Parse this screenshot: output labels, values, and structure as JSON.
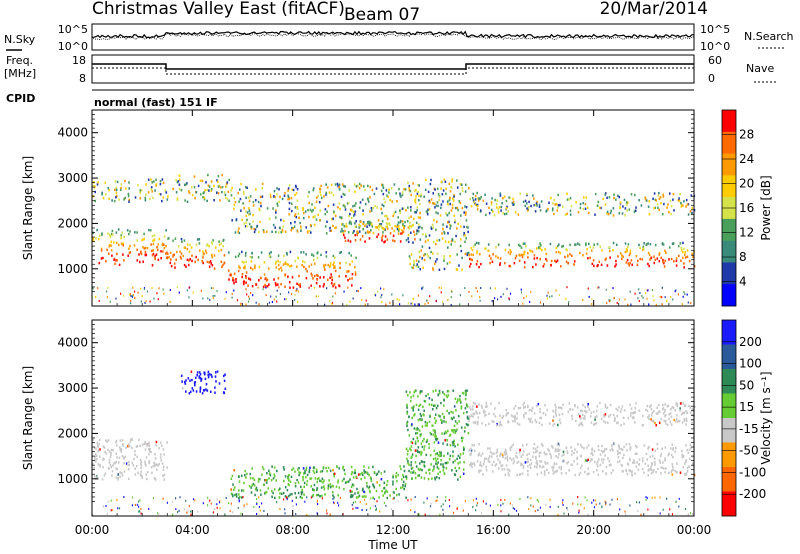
{
  "header": {
    "station": "Christmas Valley East (fitACF)",
    "beam": "Beam 07",
    "date": "20/Mar/2014"
  },
  "noise_panel": {
    "left_label": "N.Sky",
    "left_ticks": [
      "10^5",
      "10^0"
    ],
    "right_ticks": [
      "10^5",
      "10^0"
    ],
    "right_label": "N.Search"
  },
  "freq_panel": {
    "left_label_1": "Freq.",
    "left_label_2": "[MHz]",
    "left_ticks": [
      "18",
      "8"
    ],
    "right_ticks": [
      "60",
      "0"
    ],
    "right_label": "Nave"
  },
  "cpid": {
    "label": "CPID",
    "mode_text": "normal (fast) 151 IF"
  },
  "power_panel": {
    "ylabel": "Slant Range [km]",
    "yticks": [
      "4000",
      "3000",
      "2000",
      "1000"
    ],
    "colorbar_label": "Power [dB]",
    "colorbar_ticks": [
      "28",
      "24",
      "20",
      "16",
      "12",
      "8",
      "4"
    ],
    "colorbar_colors": [
      "#ff0000",
      "#ff6a00",
      "#ff9900",
      "#ffcc00",
      "#d6e24a",
      "#4aa05a",
      "#3a8a7a",
      "#1f3aa8",
      "#0000ff"
    ]
  },
  "velocity_panel": {
    "ylabel": "Slant Range [km]",
    "yticks": [
      "4000",
      "3000",
      "2000",
      "1000"
    ],
    "colorbar_label": "Velocity [m s⁻¹]",
    "colorbar_ticks": [
      "200",
      "100",
      "50",
      "15",
      "-15",
      "-50",
      "-100",
      "-200"
    ],
    "colorbar_colors": [
      "#1a1aff",
      "#2a5a9a",
      "#2e8b57",
      "#66cc33",
      "#c8c8c8",
      "#ff9900",
      "#ff6600",
      "#ff0000"
    ]
  },
  "xaxis": {
    "ticks": [
      "00:00",
      "04:00",
      "08:00",
      "12:00",
      "16:00",
      "20:00",
      "00:00"
    ],
    "label": "Time UT"
  },
  "chart_data": {
    "type": "heatmap",
    "title": "Christmas Valley East (fitACF) Beam 07 20/Mar/2014",
    "xlabel": "Time UT",
    "ylabel": "Slant Range [km]",
    "xlim": [
      0,
      24
    ],
    "ylim": [
      180,
      4500
    ],
    "power_range_db": [
      0,
      30
    ],
    "velocity_range_ms": [
      -200,
      200
    ],
    "power_bands": [
      {
        "start_h": 0.0,
        "end_h": 3.0,
        "low_km": 1100,
        "high_km": 1900,
        "level": "strong"
      },
      {
        "start_h": 0.0,
        "end_h": 3.0,
        "low_km": 2500,
        "high_km": 3000,
        "level": "medium"
      },
      {
        "start_h": 3.0,
        "end_h": 5.4,
        "low_km": 1000,
        "high_km": 1700,
        "level": "strong"
      },
      {
        "start_h": 3.2,
        "end_h": 5.5,
        "low_km": 2500,
        "high_km": 3100,
        "level": "medium"
      },
      {
        "start_h": 5.4,
        "end_h": 10.5,
        "low_km": 600,
        "high_km": 1400,
        "level": "strong"
      },
      {
        "start_h": 5.5,
        "end_h": 12.5,
        "low_km": 1800,
        "high_km": 2900,
        "level": "medium"
      },
      {
        "start_h": 10.0,
        "end_h": 13.0,
        "low_km": 1600,
        "high_km": 2100,
        "level": "strong"
      },
      {
        "start_h": 12.5,
        "end_h": 15.0,
        "low_km": 1000,
        "high_km": 3000,
        "level": "medium"
      },
      {
        "start_h": 15.0,
        "end_h": 24.0,
        "low_km": 1050,
        "high_km": 1600,
        "level": "strong"
      },
      {
        "start_h": 15.0,
        "end_h": 24.0,
        "low_km": 2200,
        "high_km": 2700,
        "level": "medium"
      }
    ],
    "velocity_bands": [
      {
        "start_h": 0.0,
        "end_h": 3.0,
        "low_km": 1000,
        "high_km": 1900,
        "v": 0
      },
      {
        "start_h": 3.5,
        "end_h": 5.3,
        "low_km": 2900,
        "high_km": 3400,
        "v": 200
      },
      {
        "start_h": 5.5,
        "end_h": 12.5,
        "low_km": 600,
        "high_km": 1300,
        "v": 30
      },
      {
        "start_h": 12.5,
        "end_h": 15.0,
        "low_km": 1000,
        "high_km": 3000,
        "v": 30
      },
      {
        "start_h": 15.0,
        "end_h": 24.0,
        "low_km": 1100,
        "high_km": 1800,
        "v": 0
      },
      {
        "start_h": 15.0,
        "end_h": 24.0,
        "low_km": 2200,
        "high_km": 2700,
        "v": 0
      }
    ]
  }
}
